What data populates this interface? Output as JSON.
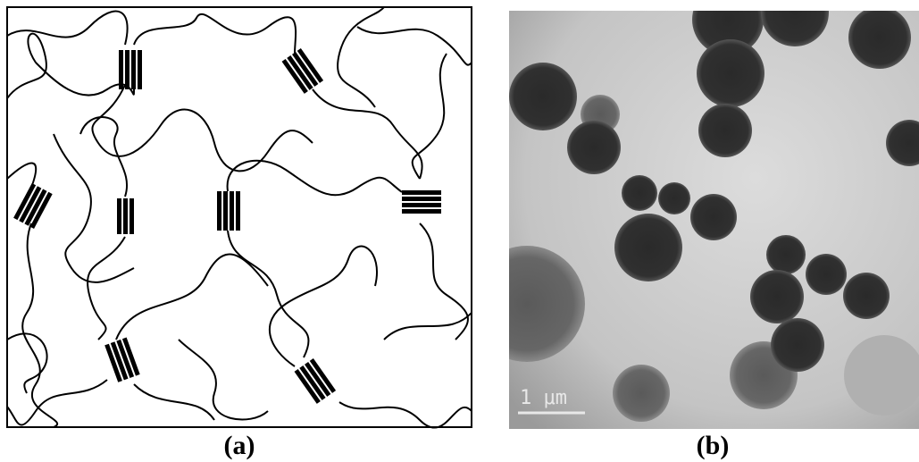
{
  "panel_a": {
    "caption": "(a)"
  },
  "panel_b": {
    "caption": "(b)",
    "scale_bar": "1 μm"
  }
}
